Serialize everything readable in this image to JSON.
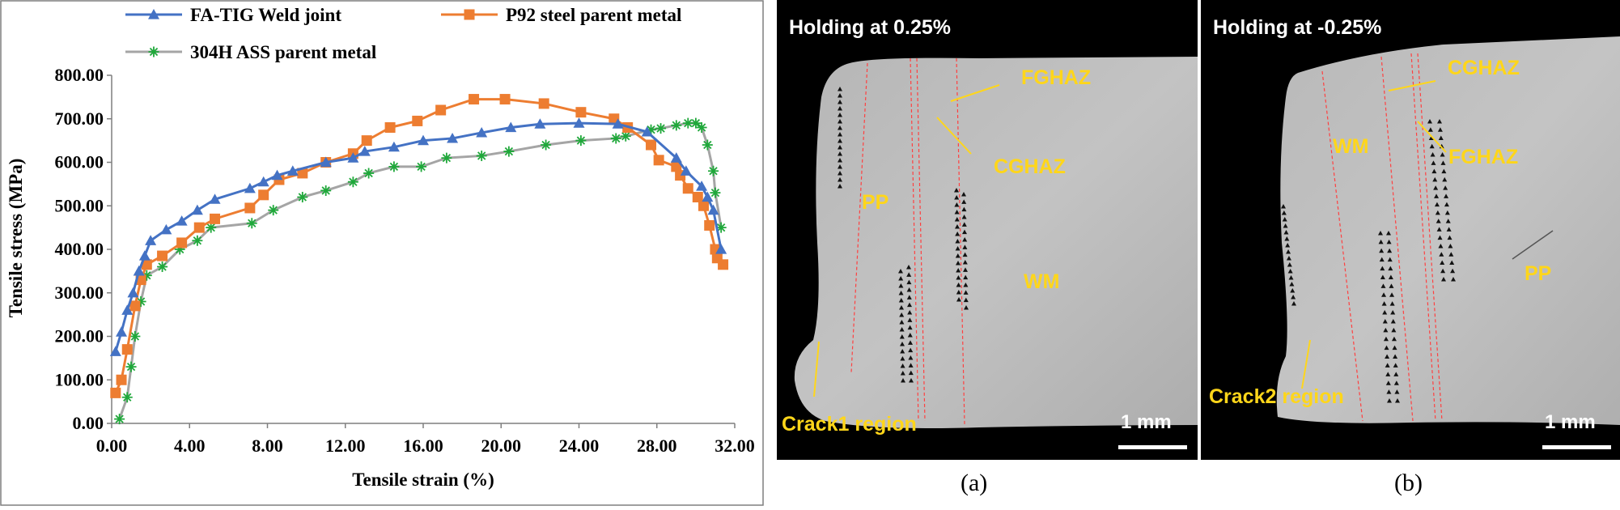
{
  "chart_data": {
    "type": "line",
    "xlabel": "Tensile strain (%)",
    "ylabel": "Tensile stress (MPa)",
    "xlim": [
      0,
      32
    ],
    "ylim": [
      0,
      800
    ],
    "xticks": [
      "0.00",
      "4.00",
      "8.00",
      "12.00",
      "16.00",
      "20.00",
      "24.00",
      "28.00",
      "32.00"
    ],
    "yticks": [
      "0.00",
      "100.00",
      "200.00",
      "300.00",
      "400.00",
      "500.00",
      "600.00",
      "700.00",
      "800.00"
    ],
    "grid": false,
    "legend_position": "top",
    "series": [
      {
        "name": "FA-TIG Weld joint",
        "color": "#4472c4",
        "marker": "triangle",
        "x": [
          0.2,
          0.5,
          0.8,
          1.1,
          1.4,
          1.7,
          2.0,
          2.8,
          3.6,
          4.4,
          5.3,
          7.1,
          7.8,
          8.5,
          9.3,
          11.0,
          12.4,
          13.0,
          14.5,
          16.0,
          17.5,
          19.0,
          20.5,
          22.0,
          24.0,
          26.0,
          27.5,
          29.0,
          29.5,
          30.3,
          30.6,
          30.9,
          31.3
        ],
        "y": [
          165,
          210,
          260,
          300,
          350,
          385,
          420,
          445,
          465,
          490,
          515,
          540,
          555,
          570,
          580,
          600,
          610,
          625,
          635,
          650,
          655,
          668,
          680,
          688,
          690,
          688,
          670,
          610,
          580,
          545,
          520,
          490,
          400
        ]
      },
      {
        "name": "P92 steel parent metal",
        "color": "#ed7d31",
        "marker": "square",
        "x": [
          0.2,
          0.5,
          0.8,
          1.2,
          1.5,
          1.8,
          2.6,
          3.6,
          4.5,
          5.3,
          7.1,
          7.8,
          8.6,
          9.8,
          11.0,
          12.4,
          13.1,
          14.3,
          15.7,
          16.9,
          18.6,
          20.2,
          22.2,
          24.1,
          25.8,
          26.5,
          27.7,
          28.1,
          29.0,
          29.2,
          29.6,
          30.1,
          30.4,
          30.7,
          31.0,
          31.1,
          31.4
        ],
        "y": [
          70,
          100,
          170,
          270,
          330,
          365,
          385,
          415,
          450,
          470,
          495,
          525,
          560,
          575,
          600,
          620,
          650,
          680,
          695,
          720,
          745,
          745,
          735,
          715,
          700,
          680,
          640,
          605,
          590,
          570,
          540,
          520,
          500,
          455,
          400,
          380,
          365
        ]
      },
      {
        "name": "304H ASS parent metal",
        "color": "#a5a5a5",
        "marker": "star",
        "markerColor": "#1fa83a",
        "x": [
          0.4,
          0.8,
          1.0,
          1.2,
          1.5,
          1.8,
          2.6,
          3.5,
          4.4,
          5.1,
          7.2,
          8.3,
          9.8,
          11.0,
          12.4,
          13.2,
          14.5,
          15.9,
          17.2,
          19.0,
          20.4,
          22.3,
          24.1,
          25.9,
          26.4,
          27.7,
          28.2,
          29.0,
          29.6,
          30.0,
          30.3,
          30.6,
          30.9,
          31.0,
          31.3
        ],
        "y": [
          10,
          60,
          130,
          200,
          280,
          340,
          360,
          400,
          420,
          450,
          460,
          490,
          520,
          535,
          555,
          575,
          590,
          590,
          610,
          615,
          625,
          640,
          650,
          655,
          660,
          675,
          678,
          685,
          690,
          690,
          680,
          640,
          580,
          530,
          450
        ]
      }
    ]
  },
  "panels": {
    "a": {
      "title": "Holding at 0.25%",
      "caption": "(a)",
      "labels": {
        "fghaz": "FGHAZ",
        "cghaz": "CGHAZ",
        "pp": "PP",
        "wm": "WM",
        "crack": "Crack1 region"
      },
      "scale_bar": "1 mm"
    },
    "b": {
      "title": "Holding at -0.25%",
      "caption": "(b)",
      "labels": {
        "cghaz": "CGHAZ",
        "fghaz": "FGHAZ",
        "wm": "WM",
        "pp": "PP",
        "crack": "Crack2 region"
      },
      "scale_bar": "1 mm"
    }
  }
}
